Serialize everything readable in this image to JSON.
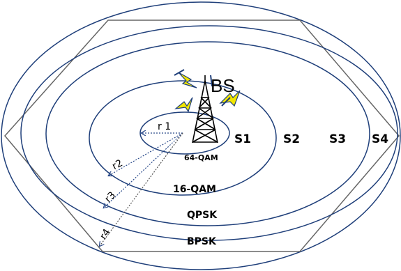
{
  "diagram": {
    "base_station_label": "BS",
    "zones": [
      "S1",
      "S2",
      "S3",
      "S4"
    ],
    "modulations": [
      "64-QAM",
      "16-QAM",
      "QPSK",
      "BPSK"
    ],
    "radii": [
      "r 1",
      "r2",
      "r3",
      "r4"
    ],
    "colors": {
      "ellipse_stroke": "#1f3f7a",
      "hexagon_stroke": "#666666",
      "radius_arrow": "#2a4a8a",
      "tower": "#000000",
      "lightning_fill": "#f2e600",
      "lightning_stroke": "#1f3f7a"
    }
  }
}
